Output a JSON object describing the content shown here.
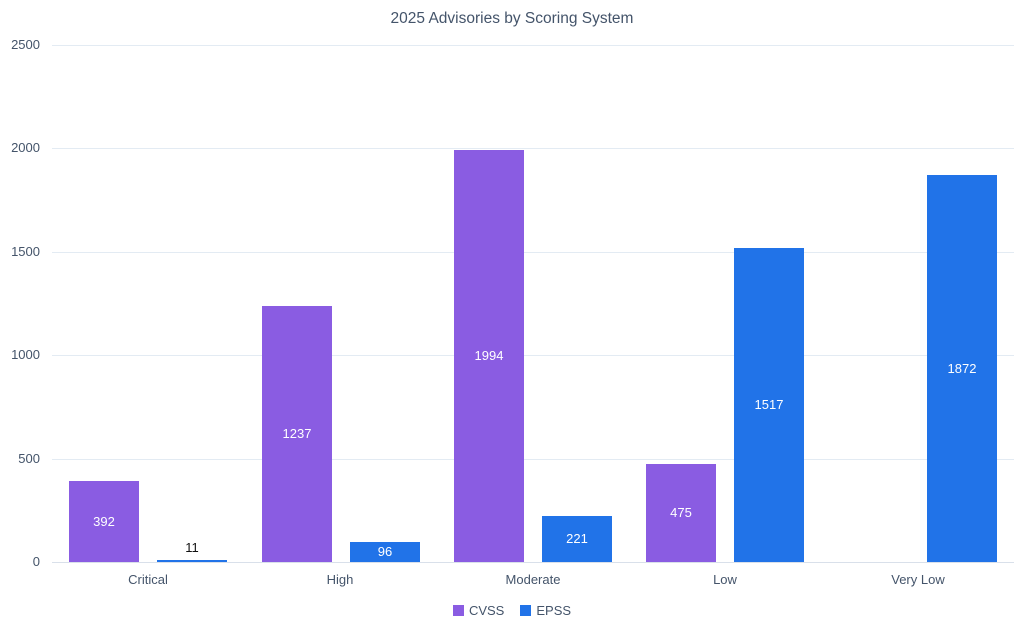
{
  "chart_data": {
    "type": "bar",
    "title": "2025 Advisories by Scoring System",
    "categories": [
      "Critical",
      "High",
      "Moderate",
      "Low",
      "Very Low"
    ],
    "series": [
      {
        "name": "CVSS",
        "color": "#8A5CE2",
        "values": [
          392,
          1237,
          1994,
          475,
          null
        ]
      },
      {
        "name": "EPSS",
        "color": "#2173E8",
        "values": [
          11,
          96,
          221,
          1517,
          1872
        ]
      }
    ],
    "ylim": [
      0,
      2500
    ],
    "yticks": [
      0,
      500,
      1000,
      1500,
      2000,
      2500
    ],
    "grid": true,
    "legend_position": "bottom",
    "data_label_inside_color": "#FFFFFF",
    "data_label_outside_color": "#111111",
    "text_color": "#44546A",
    "gridline_color": "#E3EBF3",
    "axis_line_color": "#D9E0EA"
  }
}
